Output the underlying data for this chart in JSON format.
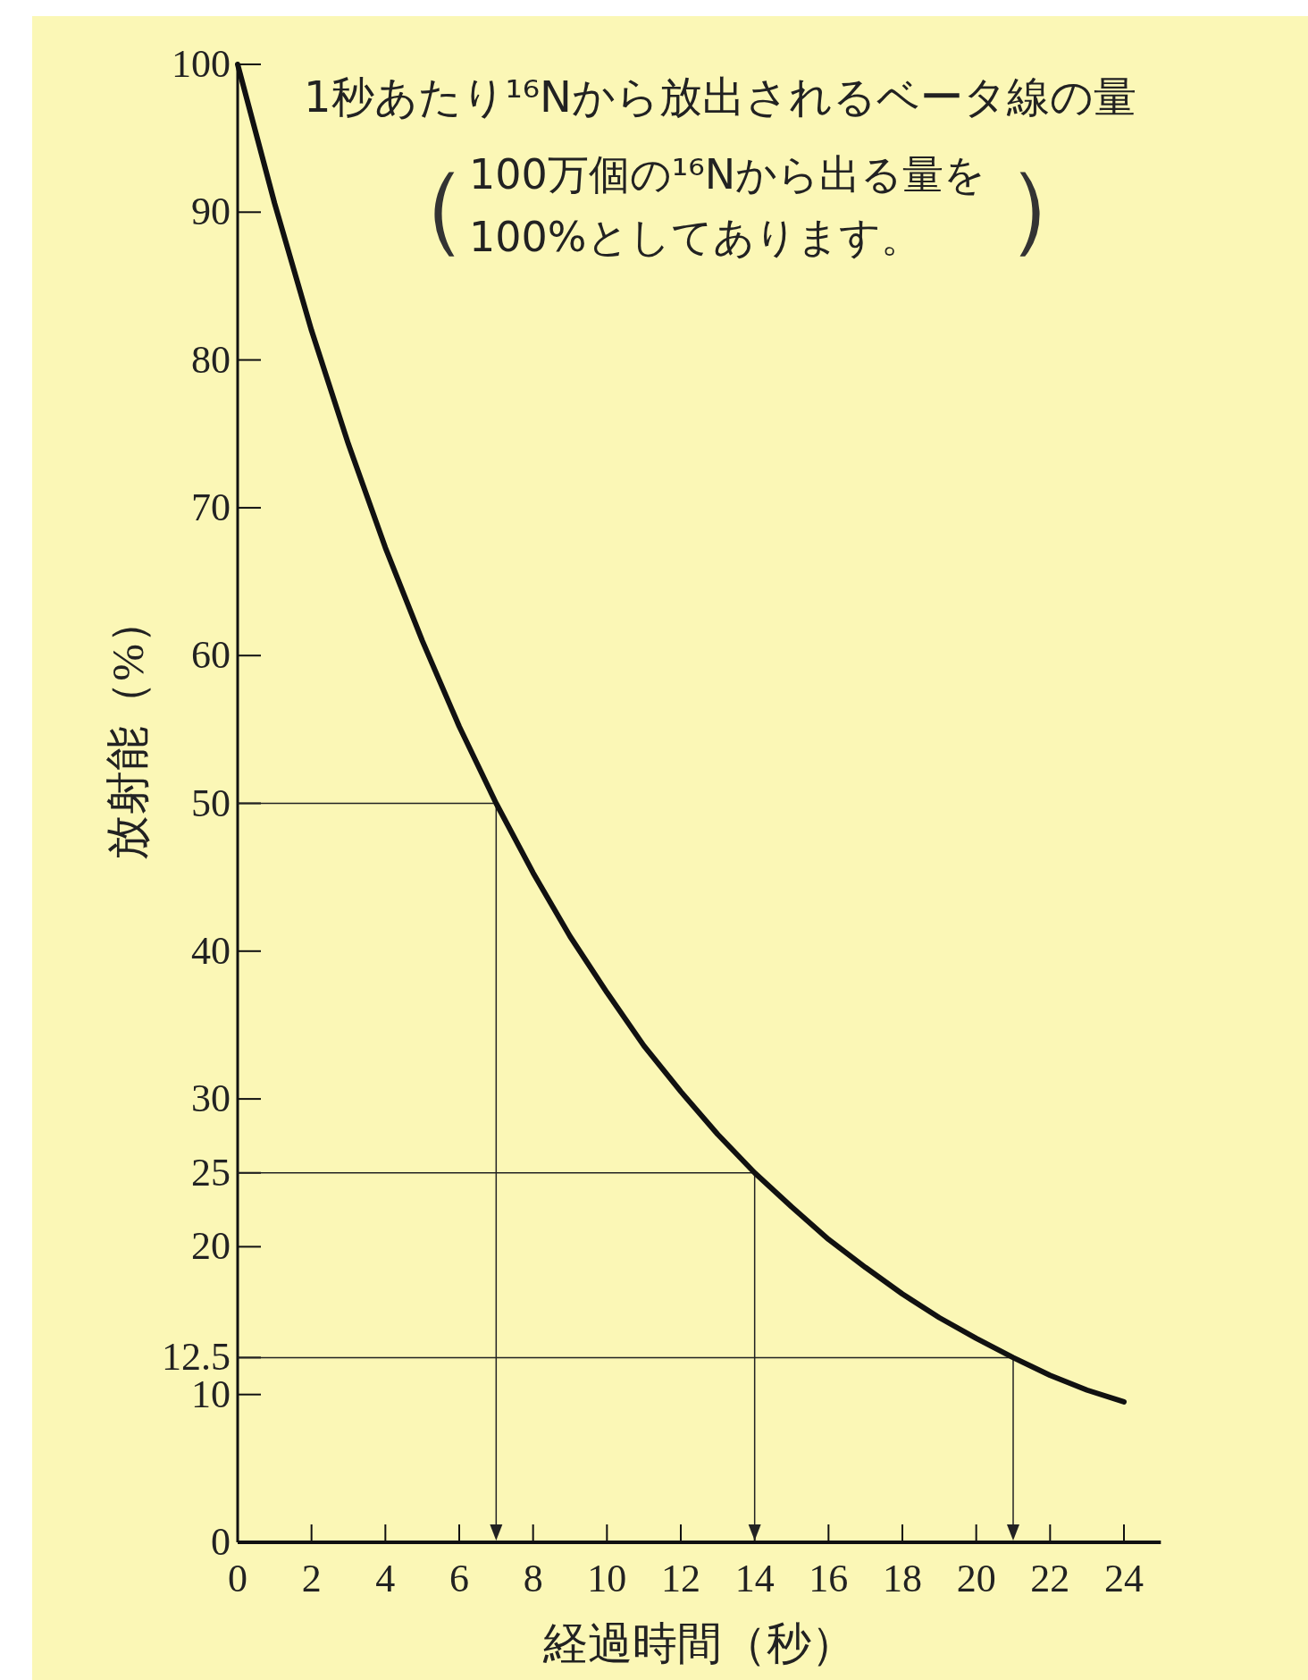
{
  "chart_data": {
    "type": "line",
    "title": "1秒あたり¹⁶Nから放出されるベータ線の量",
    "subtitle": "（100万個の¹⁶Nから出る量を100%としてあります。）",
    "xlabel": "経過時間（秒）",
    "ylabel": "放射能（%）",
    "x": [
      0,
      1,
      2,
      3,
      4,
      5,
      6,
      7,
      8,
      9,
      10,
      11,
      12,
      13,
      14,
      15,
      16,
      17,
      18,
      19,
      20,
      21,
      22,
      23,
      24
    ],
    "series": [
      {
        "color": "#111111",
        "values": [
          100,
          90.6,
          82,
          74.3,
          67.3,
          61,
          55.2,
          50,
          45.3,
          41,
          37.2,
          33.6,
          30.5,
          27.6,
          25,
          22.7,
          20.5,
          18.6,
          16.8,
          15.2,
          13.8,
          12.5,
          11.3,
          10.3,
          9.5
        ]
      }
    ],
    "xlim": [
      0,
      25
    ],
    "xticks": [
      0,
      2,
      4,
      6,
      8,
      10,
      12,
      14,
      16,
      18,
      20,
      22,
      24
    ],
    "ylim": [
      0,
      100
    ],
    "yticks": [
      0,
      10,
      12.5,
      20,
      25,
      30,
      40,
      50,
      60,
      70,
      80,
      90,
      100
    ],
    "ref_lines": [
      {
        "axis": "y",
        "value": 50
      },
      {
        "axis": "y",
        "value": 25
      },
      {
        "axis": "y",
        "value": 12.5
      },
      {
        "axis": "x",
        "value": 7
      },
      {
        "axis": "x",
        "value": 14
      },
      {
        "axis": "x",
        "value": 21
      }
    ],
    "grid": false,
    "marker": "none",
    "line_style": "solid"
  }
}
